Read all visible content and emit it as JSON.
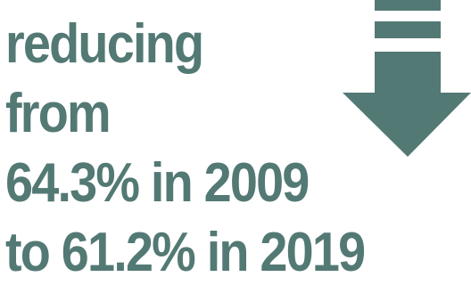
{
  "stat": {
    "lines": [
      "reducing",
      "from",
      "64.3% in 2009",
      "to 61.2% in 2019"
    ]
  },
  "icon": {
    "name": "down-arrow-icon",
    "color": "#537974"
  },
  "colors": {
    "text": "#537974",
    "background": "#ffffff"
  }
}
